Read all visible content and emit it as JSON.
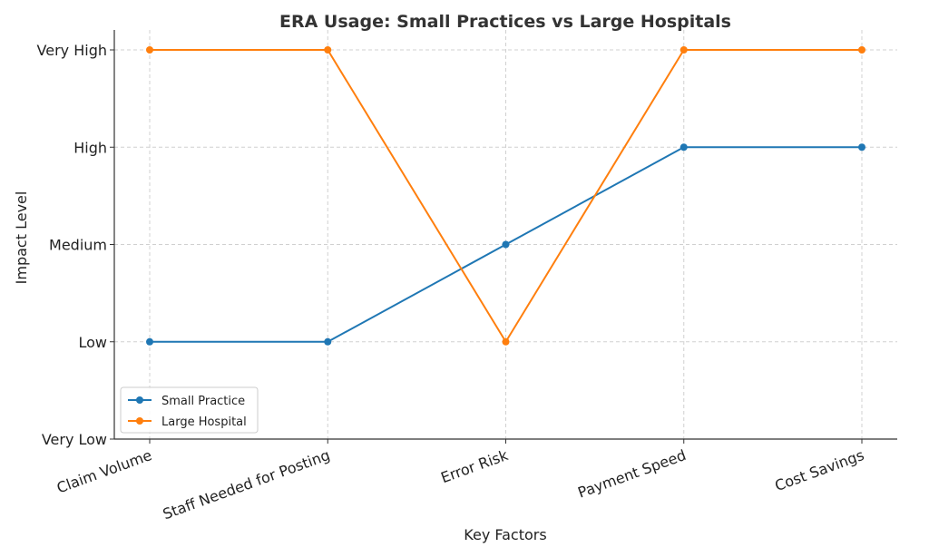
{
  "chart_data": {
    "type": "line",
    "title": "ERA Usage: Small Practices vs Large Hospitals",
    "xlabel": "Key Factors",
    "ylabel": "Impact Level",
    "categories": [
      "Claim Volume",
      "Staff Needed for Posting",
      "Error Risk",
      "Payment Speed",
      "Cost Savings"
    ],
    "y_tick_labels": [
      "Very Low",
      "Low",
      "Medium",
      "High",
      "Very High"
    ],
    "ylim": [
      1,
      5
    ],
    "grid": true,
    "legend_position": "lower-left",
    "series": [
      {
        "name": "Small Practice",
        "color": "#1f77b4",
        "values": [
          2,
          2,
          3,
          4,
          4
        ]
      },
      {
        "name": "Large Hospital",
        "color": "#ff7f0e",
        "values": [
          5,
          5,
          2,
          5,
          5
        ]
      }
    ]
  }
}
